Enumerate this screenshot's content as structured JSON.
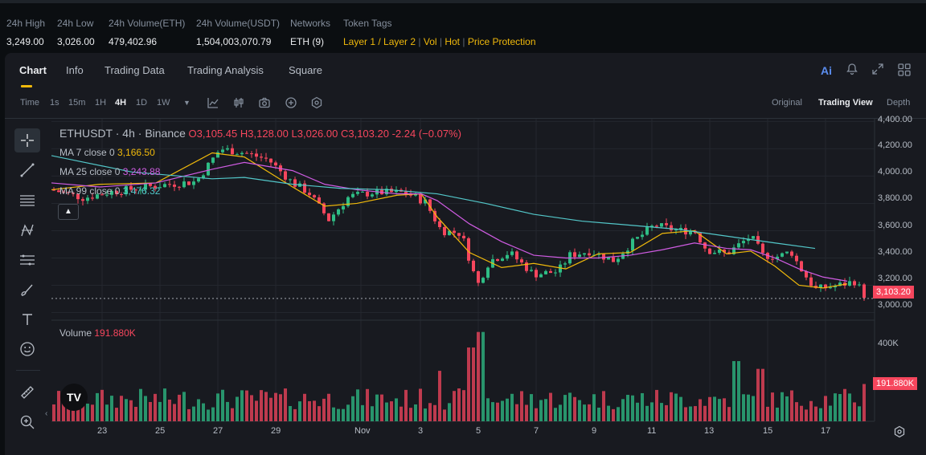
{
  "stats": [
    {
      "label": "24h High",
      "value": "3,249.00"
    },
    {
      "label": "24h Low",
      "value": "3,026.00"
    },
    {
      "label": "24h Volume(ETH)",
      "value": "479,402.96"
    },
    {
      "label": "24h Volume(USDT)",
      "value": "1,504,003,070.79"
    },
    {
      "label": "Networks",
      "value": "ETH (9)"
    }
  ],
  "token_tags": {
    "label": "Token Tags",
    "tags": [
      "Layer 1 / Layer 2",
      "Vol",
      "Hot",
      "Price Protection"
    ]
  },
  "tabs": [
    "Chart",
    "Info",
    "Trading Data",
    "Trading Analysis",
    "Square"
  ],
  "tab_icons": {
    "ai": "Ai",
    "bell": "bell-icon",
    "expand": "expand-icon",
    "grid": "grid-icon"
  },
  "toolbar": {
    "time_label": "Time",
    "intervals": [
      "1s",
      "15m",
      "1H",
      "4H",
      "1D",
      "1W"
    ],
    "active_interval": "4H",
    "views": [
      "Original",
      "Trading View",
      "Depth"
    ],
    "active_view": "Trading View"
  },
  "legend": {
    "symbol": "ETHUSDT · 4h · Binance",
    "open": "O3,105.45",
    "high": "H3,128.00",
    "low": "L3,026.00",
    "close": "C3,103.20",
    "change": "-2.24 (−0.07%)",
    "ma7_label": "MA 7 close 0",
    "ma7_value": "3,166.50",
    "ma25_label": "MA 25 close 0",
    "ma25_value": "3,243.88",
    "ma99_label": "MA 99 close 0",
    "ma99_value": "3,476.32",
    "volume_label": "Volume",
    "volume_value": "191.880K"
  },
  "colors": {
    "up": "#2ebd85",
    "down": "#f6465d",
    "ma7": "#f0b90b",
    "ma25": "#d05ce3",
    "ma99": "#53c7c9",
    "accent": "#f0b90b"
  },
  "price_axis": [
    "4,400.00",
    "4,200.00",
    "4,000.00",
    "3,800.00",
    "3,600.00",
    "3,400.00",
    "3,200.00",
    "3,000.00"
  ],
  "last_price": "3,103.20",
  "volume_axis": [
    "400K"
  ],
  "last_volume": "191.880K",
  "date_axis": [
    "23",
    "25",
    "27",
    "29",
    "Nov",
    "3",
    "5",
    "7",
    "9",
    "11",
    "13",
    "15",
    "17"
  ],
  "chart_data": {
    "type": "candlestick",
    "price_range": [
      2950,
      4420
    ],
    "volume_range": [
      0,
      500
    ],
    "ma_lines": {
      "ma7": [
        [
          0,
          3900
        ],
        [
          60,
          3940
        ],
        [
          130,
          3950
        ],
        [
          200,
          4170
        ],
        [
          240,
          4140
        ],
        [
          300,
          3920
        ],
        [
          340,
          3780
        ],
        [
          380,
          3800
        ],
        [
          430,
          3860
        ],
        [
          460,
          3870
        ],
        [
          480,
          3700
        ],
        [
          520,
          3440
        ],
        [
          560,
          3330
        ],
        [
          600,
          3360
        ],
        [
          640,
          3320
        ],
        [
          680,
          3430
        ],
        [
          720,
          3440
        ],
        [
          760,
          3580
        ],
        [
          800,
          3600
        ],
        [
          840,
          3430
        ],
        [
          870,
          3450
        ],
        [
          900,
          3340
        ],
        [
          930,
          3200
        ],
        [
          960,
          3180
        ],
        [
          990,
          3210
        ]
      ],
      "ma25": [
        [
          0,
          3950
        ],
        [
          60,
          3920
        ],
        [
          130,
          3950
        ],
        [
          200,
          4050
        ],
        [
          240,
          4100
        ],
        [
          300,
          4040
        ],
        [
          340,
          3940
        ],
        [
          380,
          3900
        ],
        [
          430,
          3870
        ],
        [
          460,
          3870
        ],
        [
          480,
          3820
        ],
        [
          520,
          3650
        ],
        [
          560,
          3520
        ],
        [
          600,
          3420
        ],
        [
          640,
          3400
        ],
        [
          680,
          3400
        ],
        [
          720,
          3420
        ],
        [
          760,
          3460
        ],
        [
          800,
          3510
        ],
        [
          840,
          3470
        ],
        [
          870,
          3460
        ],
        [
          900,
          3400
        ],
        [
          930,
          3320
        ],
        [
          960,
          3260
        ],
        [
          990,
          3230
        ]
      ],
      "ma99": [
        [
          0,
          4150
        ],
        [
          100,
          4030
        ],
        [
          200,
          3980
        ],
        [
          240,
          3990
        ],
        [
          300,
          3940
        ],
        [
          360,
          3910
        ],
        [
          420,
          3900
        ],
        [
          480,
          3870
        ],
        [
          540,
          3800
        ],
        [
          600,
          3720
        ],
        [
          660,
          3670
        ],
        [
          720,
          3640
        ],
        [
          780,
          3610
        ],
        [
          840,
          3560
        ],
        [
          900,
          3510
        ],
        [
          950,
          3470
        ]
      ]
    },
    "candles": []
  }
}
